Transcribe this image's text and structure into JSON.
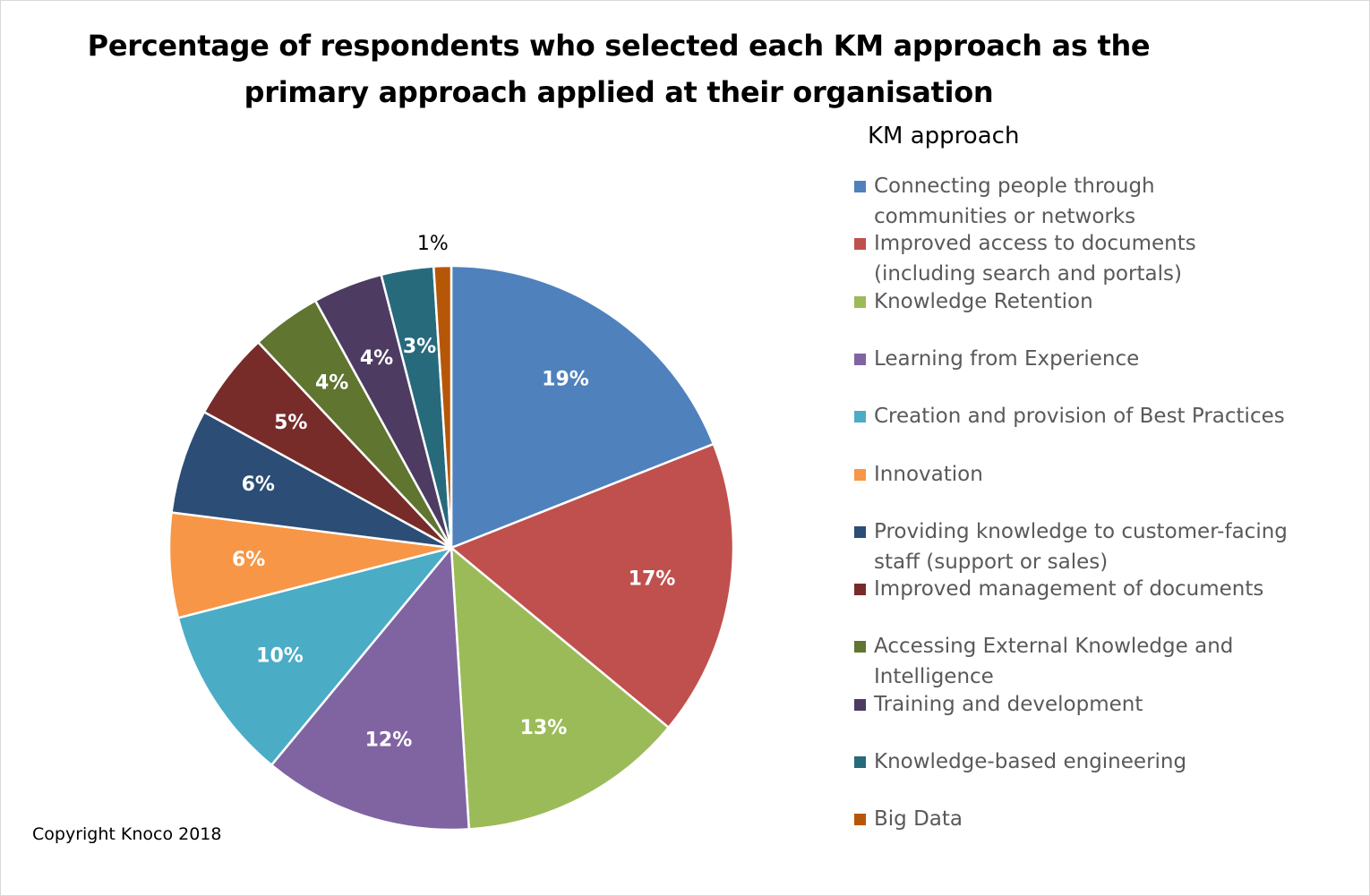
{
  "title_lines": [
    "Percentage of respondents who selected each KM approach as the",
    "primary approach applied at their organisation"
  ],
  "copyright": "Copyright Knoco 2018",
  "chart_data": {
    "type": "pie",
    "title": "Percentage of respondents who selected each KM approach as the primary approach applied at their organisation",
    "legend_title": "KM approach",
    "legend_position": "right",
    "label_format": "percent",
    "start_angle_deg": 0,
    "direction": "clockwise",
    "slices": [
      {
        "label": "Connecting people through communities or networks",
        "label_lines": [
          "Connecting people through",
          "communities or networks"
        ],
        "value": 19,
        "display": "19%",
        "color": "#4F81BD"
      },
      {
        "label": "Improved access to documents (including search and portals)",
        "label_lines": [
          "Improved access to documents",
          "(including search and portals)"
        ],
        "value": 17,
        "display": "17%",
        "color": "#C0504D"
      },
      {
        "label": "Knowledge Retention",
        "label_lines": [
          "Knowledge Retention"
        ],
        "value": 13,
        "display": "13%",
        "color": "#9BBB59"
      },
      {
        "label": "Learning from Experience",
        "label_lines": [
          "Learning from Experience"
        ],
        "value": 12,
        "display": "12%",
        "color": "#8064A2"
      },
      {
        "label": "Creation and provision of Best Practices",
        "label_lines": [
          "Creation and provision of Best Practices"
        ],
        "value": 10,
        "display": "10%",
        "color": "#4BACC6"
      },
      {
        "label": "Innovation",
        "label_lines": [
          "Innovation"
        ],
        "value": 6,
        "display": "6%",
        "color": "#F79646"
      },
      {
        "label": "Providing knowledge to customer-facing staff (support or sales)",
        "label_lines": [
          "Providing knowledge to customer-facing",
          "staff (support or sales)"
        ],
        "value": 6,
        "display": "6%",
        "color": "#2C4D75"
      },
      {
        "label": "Improved management of documents",
        "label_lines": [
          "Improved management of documents"
        ],
        "value": 5,
        "display": "5%",
        "color": "#772C2A"
      },
      {
        "label": "Accessing External Knowledge and Intelligence",
        "label_lines": [
          "Accessing External Knowledge and",
          "Intelligence"
        ],
        "value": 4,
        "display": "4%",
        "color": "#5F7530"
      },
      {
        "label": "Training and development",
        "label_lines": [
          "Training and development"
        ],
        "value": 4,
        "display": "4%",
        "color": "#4D3B62"
      },
      {
        "label": "Knowledge-based engineering",
        "label_lines": [
          "Knowledge-based engineering"
        ],
        "value": 3,
        "display": "3%",
        "color": "#276A7C"
      },
      {
        "label": "Big Data",
        "label_lines": [
          "Big Data"
        ],
        "value": 1,
        "display": "1%",
        "color": "#B65708"
      }
    ]
  }
}
